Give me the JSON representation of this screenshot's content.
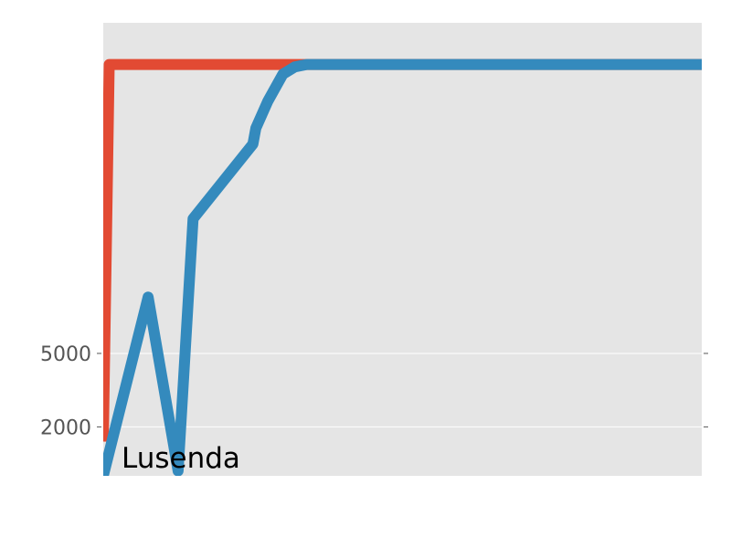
{
  "chart_data": {
    "type": "line",
    "title": "",
    "xlabel": "",
    "ylabel": "",
    "grid": true,
    "background": "#e5e5e5",
    "ylim": [
      0,
      18500
    ],
    "xlim": [
      0,
      100
    ],
    "yticks": [
      {
        "value": 2000,
        "label": "2000"
      },
      {
        "value": 5000,
        "label": "5000"
      }
    ],
    "annotation": "Lusenda",
    "series": [
      {
        "color": "#e24a33",
        "x": [
          0,
          1,
          100
        ],
        "y": [
          1400,
          16800,
          16800
        ]
      },
      {
        "color": "#348abd",
        "x": [
          0,
          7.5,
          12.5,
          15,
          25,
          25.5,
          27.5,
          30,
          32,
          34,
          100
        ],
        "y": [
          0,
          7300,
          200,
          10500,
          13550,
          14200,
          15300,
          16400,
          16700,
          16800,
          16800
        ]
      }
    ]
  }
}
